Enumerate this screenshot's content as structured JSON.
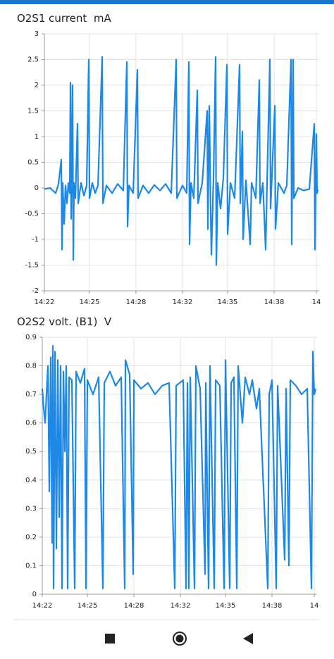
{
  "chart_data": [
    {
      "type": "line",
      "title": "O2S1 current  mA",
      "color": "#1e88e5",
      "grid": true,
      "xlim": [
        0,
        195
      ],
      "xticks": [
        {
          "value": 0,
          "label": "14:22"
        },
        {
          "value": 32,
          "label": "14:25"
        },
        {
          "value": 65,
          "label": "14:28"
        },
        {
          "value": 98,
          "label": "14:32"
        },
        {
          "value": 130,
          "label": "14:35"
        },
        {
          "value": 163,
          "label": "14:38"
        },
        {
          "value": 193,
          "label": "14"
        }
      ],
      "ylim": [
        -2,
        3
      ],
      "yticks": [
        -2,
        -1.5,
        -1,
        -0.5,
        0,
        0.5,
        1,
        1.5,
        2,
        2.5,
        3
      ],
      "x": [
        0,
        4,
        8,
        10,
        12,
        12.5,
        13,
        14,
        15,
        16,
        17,
        18,
        18.5,
        19,
        20,
        20.5,
        21,
        22,
        23.5,
        24,
        26,
        28,
        30,
        31.5,
        32,
        34,
        36,
        38,
        41,
        41.5,
        44,
        48,
        52,
        56,
        58.5,
        59,
        60,
        63,
        66,
        66.5,
        70,
        74,
        78,
        82,
        86,
        90,
        93.5,
        94,
        98,
        101,
        102.5,
        103,
        104,
        106,
        108.5,
        109,
        112,
        115.5,
        116,
        117,
        118,
        118.5,
        120,
        121.5,
        122,
        123,
        125,
        127,
        129.5,
        130,
        132,
        135,
        138.5,
        139,
        140.5,
        141,
        143,
        146,
        147,
        150,
        152.5,
        153,
        155,
        157,
        158,
        160,
        160.5,
        163.5,
        164,
        166,
        170,
        172,
        175,
        175.5,
        176.5,
        177,
        180,
        184,
        188,
        191.5,
        192,
        193,
        193.5,
        194
      ],
      "values": [
        -0.02,
        0,
        -0.1,
        0.08,
        0.55,
        -1.2,
        0.1,
        -0.7,
        0.05,
        -0.3,
        0.1,
        -0.1,
        2.05,
        -0.6,
        2.0,
        -1.4,
        0.1,
        -0.2,
        1.25,
        -0.3,
        0.1,
        -0.15,
        0.05,
        2.5,
        -0.2,
        0.1,
        -0.1,
        0.05,
        2.55,
        -0.3,
        0.05,
        -0.1,
        0.08,
        -0.05,
        2.45,
        -0.75,
        0.05,
        -0.1,
        2.3,
        -0.2,
        0.05,
        -0.1,
        0.06,
        -0.05,
        0.08,
        -0.1,
        2.5,
        -0.2,
        0.05,
        -0.1,
        2.45,
        -1.1,
        0.1,
        -0.2,
        1.9,
        -0.3,
        0.1,
        1.5,
        -0.8,
        1.6,
        -0.5,
        -1.3,
        0.2,
        2.55,
        -1.5,
        0.1,
        -0.4,
        0.2,
        2.4,
        -0.9,
        0.1,
        -0.2,
        2.4,
        -0.3,
        1.1,
        -1.0,
        0.15,
        -1.1,
        0.1,
        -0.2,
        2.1,
        -0.3,
        0.1,
        -1.2,
        0.1,
        2.5,
        -0.4,
        1.6,
        -0.8,
        0.1,
        -0.1,
        0.05,
        2.5,
        -1.1,
        2.5,
        -0.2,
        0,
        -0.05,
        -0.02,
        1.25,
        -1.2,
        1.05,
        -0.1,
        -0.03
      ]
    },
    {
      "type": "line",
      "title": "O2S2 volt. (B1)  V",
      "color": "#1e88e5",
      "grid": true,
      "xlim": [
        0,
        195
      ],
      "xticks": [
        {
          "value": 0,
          "label": "14:22"
        },
        {
          "value": 32,
          "label": "14:25"
        },
        {
          "value": 65,
          "label": "14:28"
        },
        {
          "value": 98,
          "label": "14:32"
        },
        {
          "value": 130,
          "label": "14:35"
        },
        {
          "value": 163,
          "label": "14:38"
        },
        {
          "value": 193,
          "label": "14"
        }
      ],
      "ylim": [
        0,
        0.9
      ],
      "yticks": [
        0,
        0.1,
        0.2,
        0.3,
        0.4,
        0.5,
        0.6,
        0.7,
        0.8,
        0.9
      ],
      "x": [
        0,
        1,
        2,
        3,
        4,
        5,
        6,
        7,
        7.5,
        8,
        9,
        10,
        11,
        12,
        13,
        14,
        15,
        16,
        17,
        18,
        19,
        21,
        23,
        24,
        27,
        30,
        31,
        32,
        36,
        40,
        43,
        44,
        48,
        52,
        56,
        58.5,
        59,
        62,
        64.5,
        65,
        70,
        75,
        80,
        85,
        90,
        94,
        95,
        100,
        102,
        103,
        104,
        105,
        108,
        109,
        112,
        115.5,
        116,
        118,
        119,
        122,
        123,
        126,
        129,
        130,
        133,
        134,
        136,
        138,
        139,
        142,
        144,
        147,
        149,
        152,
        154,
        160,
        161,
        163,
        166,
        167,
        172,
        173,
        175,
        176,
        180,
        184,
        188,
        191,
        192,
        193,
        194
      ],
      "values": [
        0.72,
        0.65,
        0.6,
        0.7,
        0.8,
        0.36,
        0.83,
        0.18,
        0.87,
        0.02,
        0.85,
        0.16,
        0.82,
        0.27,
        0.8,
        0.02,
        0.78,
        0.5,
        0.8,
        0.02,
        0.76,
        0.75,
        0.02,
        0.78,
        0.74,
        0.79,
        0.02,
        0.75,
        0.7,
        0.76,
        0.02,
        0.74,
        0.78,
        0.73,
        0.76,
        0.02,
        0.82,
        0.77,
        0.07,
        0.75,
        0.72,
        0.74,
        0.7,
        0.73,
        0.74,
        0.02,
        0.73,
        0.75,
        0.02,
        0.74,
        0.02,
        0.76,
        0.02,
        0.8,
        0.72,
        0.07,
        0.74,
        0.02,
        0.8,
        0.02,
        0.75,
        0.73,
        0.02,
        0.82,
        0.02,
        0.74,
        0.76,
        0.02,
        0.8,
        0.6,
        0.76,
        0.7,
        0.75,
        0.65,
        0.72,
        0.02,
        0.7,
        0.75,
        0.02,
        0.73,
        0.12,
        0.72,
        0.1,
        0.75,
        0.73,
        0.7,
        0.72,
        0.02,
        0.85,
        0.7,
        0.72
      ]
    }
  ]
}
